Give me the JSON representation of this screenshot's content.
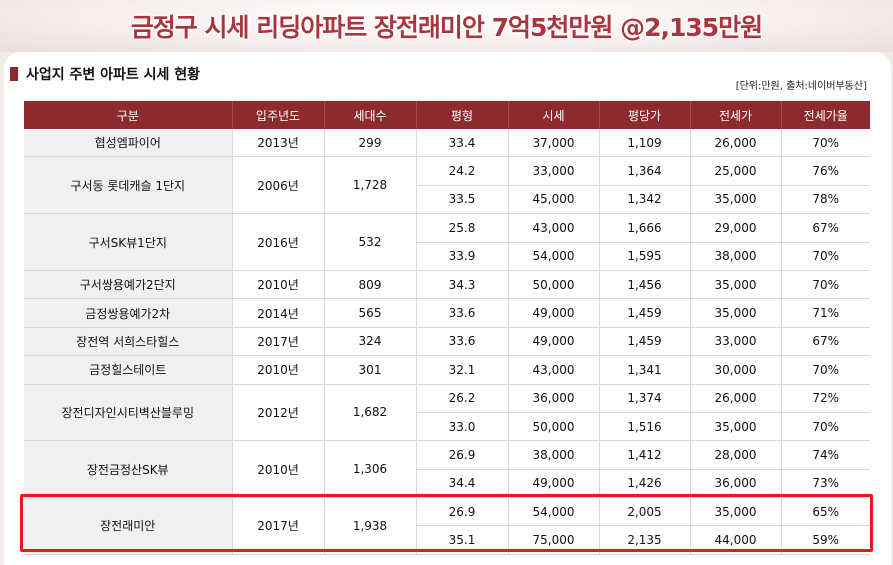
{
  "banner": {
    "title": "금정구 시세 리딩아파트 장전래미안 7억5천만원 @2,135만원"
  },
  "section": {
    "title": "사업지 주변 아파트 시세 현황",
    "unit_note": "[단위:만원, 출처:네이버부동산]"
  },
  "table": {
    "headers": [
      "구분",
      "입주년도",
      "세대수",
      "평형",
      "시세",
      "평당가",
      "전세가",
      "전세가율"
    ],
    "groups": [
      {
        "name": "협성엠파이어",
        "year": "2013년",
        "households": "299",
        "rows": [
          [
            "33.4",
            "37,000",
            "1,109",
            "26,000",
            "70%"
          ]
        ]
      },
      {
        "name": "구서동 롯데캐슬 1단지",
        "year": "2006년",
        "households": "1,728",
        "rows": [
          [
            "24.2",
            "33,000",
            "1,364",
            "25,000",
            "76%"
          ],
          [
            "33.5",
            "45,000",
            "1,342",
            "35,000",
            "78%"
          ]
        ]
      },
      {
        "name": "구서SK뷰1단지",
        "year": "2016년",
        "households": "532",
        "rows": [
          [
            "25.8",
            "43,000",
            "1,666",
            "29,000",
            "67%"
          ],
          [
            "33.9",
            "54,000",
            "1,595",
            "38,000",
            "70%"
          ]
        ]
      },
      {
        "name": "구서쌍용예가2단지",
        "year": "2010년",
        "households": "809",
        "rows": [
          [
            "34.3",
            "50,000",
            "1,456",
            "35,000",
            "70%"
          ]
        ]
      },
      {
        "name": "금정쌍용예가2차",
        "year": "2014년",
        "households": "565",
        "rows": [
          [
            "33.6",
            "49,000",
            "1,459",
            "35,000",
            "71%"
          ]
        ]
      },
      {
        "name": "장전역 서희스타힐스",
        "year": "2017년",
        "households": "324",
        "rows": [
          [
            "33.6",
            "49,000",
            "1,459",
            "33,000",
            "67%"
          ]
        ]
      },
      {
        "name": "금정힐스테이트",
        "year": "2010년",
        "households": "301",
        "rows": [
          [
            "32.1",
            "43,000",
            "1,341",
            "30,000",
            "70%"
          ]
        ]
      },
      {
        "name": "장전디자인시티벽산블루밍",
        "year": "2012년",
        "households": "1,682",
        "rows": [
          [
            "26.2",
            "36,000",
            "1,374",
            "26,000",
            "72%"
          ],
          [
            "33.0",
            "50,000",
            "1,516",
            "35,000",
            "70%"
          ]
        ]
      },
      {
        "name": "장전금정산SK뷰",
        "year": "2010년",
        "households": "1,306",
        "rows": [
          [
            "26.9",
            "38,000",
            "1,412",
            "28,000",
            "74%"
          ],
          [
            "34.4",
            "49,000",
            "1,426",
            "36,000",
            "73%"
          ]
        ]
      },
      {
        "name": "장전래미안",
        "year": "2017년",
        "households": "1,938",
        "highlighted": true,
        "rows": [
          [
            "26.9",
            "54,000",
            "2,005",
            "35,000",
            "65%"
          ],
          [
            "35.1",
            "75,000",
            "2,135",
            "44,000",
            "59%"
          ]
        ]
      }
    ]
  },
  "colors": {
    "header_bg": "#8c2a2d",
    "banner_text": "#a9363e",
    "highlight_border": "#e31b1b"
  }
}
